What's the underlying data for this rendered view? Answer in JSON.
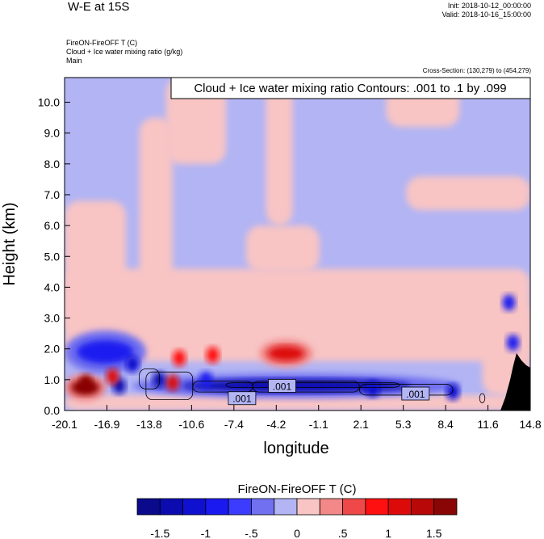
{
  "header": {
    "title": "W-E at 15S",
    "init": "Init: 2018-10-12_00:00:00",
    "valid": "Valid: 2018-10-16_15:00:00",
    "field_line": "FireON-FireOFF T   (C)",
    "overlay_line": "Cloud + Ice water mixing ratio   (g/kg)",
    "domain_line": "Main",
    "cross_section": "Cross-Section: (130,279) to (454,279)"
  },
  "chart_data": {
    "type": "heatmap",
    "title": "W-E at 15S",
    "xlabel": "longitude",
    "ylabel": "Height (km)",
    "xlim": [
      -20.1,
      14.8
    ],
    "ylim": [
      0.0,
      10.8
    ],
    "xticks": [
      "-20.1",
      "-16.9",
      "-13.8",
      "-10.6",
      "-7.4",
      "-4.2",
      "-1.1",
      "2.1",
      "5.3",
      "8.4",
      "11.6",
      "14.8"
    ],
    "yticks": [
      "0.0",
      "1.0",
      "2.0",
      "3.0",
      "4.0",
      "5.0",
      "6.0",
      "7.0",
      "8.0",
      "9.0",
      "10.0"
    ],
    "contour_info": "Cloud + Ice water mixing ratio Contours: .001 to .1 by .099",
    "contour_labels": [
      {
        "text": ".001",
        "lon": -6.8,
        "height": 0.4
      },
      {
        "text": ".001",
        "lon": -3.8,
        "height": 0.8
      },
      {
        "text": ".001",
        "lon": 6.2,
        "height": 0.55
      }
    ],
    "features": [
      {
        "name": "warm anomaly aloft",
        "lon_range": [
          -5.5,
          -1.5
        ],
        "height_range": [
          1.4,
          2.3
        ],
        "delta_t": 1.0
      },
      {
        "name": "cold layer near surface",
        "lon_range": [
          -15.0,
          9.5
        ],
        "height_range": [
          0.4,
          1.2
        ],
        "delta_t": -1.5
      },
      {
        "name": "warm surface anomaly",
        "lon_range": [
          -20.1,
          -17.0
        ],
        "height_range": [
          0.3,
          1.2
        ],
        "delta_t": 1.5
      },
      {
        "name": "cold boundary layer west",
        "lon_range": [
          -20.1,
          -14.0
        ],
        "height_range": [
          1.2,
          2.6
        ],
        "delta_t": -1.0
      },
      {
        "name": "terrain",
        "lon_range": [
          12.5,
          14.8
        ],
        "height_range": [
          0.0,
          1.8
        ],
        "delta_t": null
      }
    ],
    "colorbar": {
      "title": "FireON-FireOFF T  (C)",
      "tick_labels": [
        "-1.5",
        "-1",
        "-.5",
        "0",
        ".5",
        "1",
        "1.5"
      ],
      "tick_values": [
        -1.5,
        -1.0,
        -0.5,
        0,
        0.5,
        1.0,
        1.5
      ],
      "levels": [
        -1.75,
        -1.5,
        -1.25,
        -1.0,
        -0.75,
        -0.5,
        -0.25,
        0,
        0.25,
        0.5,
        0.75,
        1.0,
        1.25,
        1.5,
        1.75
      ],
      "colors": [
        "#0a0a8c",
        "#0b0bb0",
        "#1010d0",
        "#1a1af0",
        "#3c3cff",
        "#7070f0",
        "#b2b4f4",
        "#f8c4c4",
        "#f28888",
        "#ee4848",
        "#ff1010",
        "#dd0a0a",
        "#b80808",
        "#8a0606"
      ]
    },
    "field_colors": {
      "background_warm": "#f8c4c4",
      "background_cool": "#b2b4f4",
      "terrain": "#000000"
    }
  }
}
